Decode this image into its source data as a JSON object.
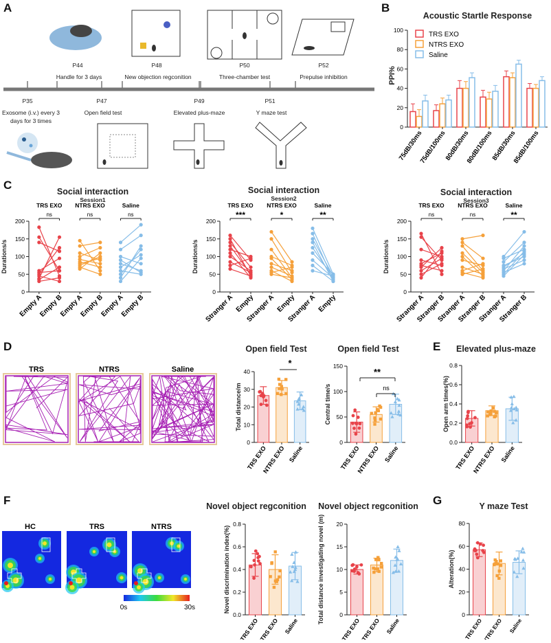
{
  "panels": {
    "A": "A",
    "B": "B",
    "C": "C",
    "D": "D",
    "E": "E",
    "F": "F",
    "G": "G"
  },
  "colors": {
    "trs": "#e8434a",
    "ntrs": "#f5a03a",
    "saline": "#86bde8",
    "trace": "#a61fb3"
  },
  "timeline": {
    "top": [
      {
        "day": "P44",
        "desc": "Handle for 3 days"
      },
      {
        "day": "P48",
        "desc": "New objection regconition"
      },
      {
        "day": "P50",
        "desc": "Three-chamber test"
      },
      {
        "day": "P52",
        "desc": "Prepulse inhibition"
      }
    ],
    "bottom": [
      {
        "day": "P35",
        "desc": "Exosome  (i.v.) every 3 days for 3 times"
      },
      {
        "day": "P47",
        "desc": "Open field test"
      },
      {
        "day": "P49",
        "desc": "Elevated plus-maze"
      },
      {
        "day": "P51",
        "desc": "Y  maze test"
      }
    ],
    "exosome_desc_line1": "Exosome  (i.v.) every 3",
    "exosome_desc_line2": "days for 3 times"
  },
  "startle": {
    "title": "Acoustic Startle Response",
    "ylabel": "PPI%",
    "legend": [
      "TRS EXO",
      "NTRS EXO",
      "Saline"
    ]
  },
  "social": {
    "title": "Social interaction",
    "sessions": [
      {
        "session": "Session1",
        "groups": [
          {
            "name": "TRS EXO",
            "sig": "ns"
          },
          {
            "name": "NTRS EXO",
            "sig": "ns"
          },
          {
            "name": "Saline",
            "sig": "ns"
          }
        ],
        "xlabels": [
          "Empty A",
          "Empty B",
          "Empty A",
          "Empty B",
          "Empty A",
          "Empty B"
        ]
      },
      {
        "session": "Session2",
        "groups": [
          {
            "name": "TRS EXO",
            "sig": "***"
          },
          {
            "name": "NTRS EXO",
            "sig": "*"
          },
          {
            "name": "Saline",
            "sig": "**"
          }
        ],
        "xlabels": [
          "Stranger A",
          "Empty",
          "Stranger A",
          "Empty",
          "Stranger A",
          "Empty"
        ]
      },
      {
        "session": "Session3",
        "groups": [
          {
            "name": "TRS EXO",
            "sig": "ns"
          },
          {
            "name": "NTRS EXO",
            "sig": "ns"
          },
          {
            "name": "Saline",
            "sig": "**"
          }
        ],
        "xlabels": [
          "Stranger A",
          "Stranger B",
          "Stranger A",
          "Stranger B",
          "Stranger A",
          "Stranger B"
        ]
      }
    ],
    "ylabel": "Durations/s"
  },
  "openfield": {
    "trace_labels": [
      "TRS",
      "NTRS",
      "Saline"
    ],
    "title": "Open field Test",
    "sig_total": "*",
    "sig_central_a": "**",
    "sig_central_b": "ns"
  },
  "epm": {
    "title": "Elevated plus-maze"
  },
  "nor": {
    "title": "Novel object regconition",
    "heat_labels": [
      "HC",
      "TRS",
      "NTRS"
    ],
    "scale_min": "0s",
    "scale_max": "30s"
  },
  "ymaze": {
    "title": "Y maze Test"
  },
  "chart_data": [
    {
      "type": "bar",
      "title": "Acoustic Startle Response",
      "ylabel": "PPI%",
      "ylim": [
        0,
        100
      ],
      "yticks": [
        0,
        20,
        40,
        60,
        80,
        100
      ],
      "categories": [
        "75dB/30ms",
        "75dB/100ms",
        "80dB/30ms",
        "80dB/100ms",
        "85dB/30ms",
        "85dB/100ms"
      ],
      "series": [
        {
          "name": "TRS EXO",
          "values": [
            16,
            17,
            40,
            31,
            52,
            40
          ]
        },
        {
          "name": "NTRS EXO",
          "values": [
            11,
            24,
            40,
            29,
            51,
            40
          ]
        },
        {
          "name": "Saline",
          "values": [
            27,
            28,
            51,
            37,
            65,
            48
          ]
        }
      ],
      "errors": [
        [
          8,
          6,
          8,
          7,
          6,
          5
        ],
        [
          7,
          6,
          7,
          7,
          5,
          4
        ],
        [
          6,
          5,
          5,
          6,
          4,
          4
        ]
      ]
    },
    {
      "type": "line",
      "title": "Social interaction Session1",
      "ylabel": "Durations/s",
      "ylim": [
        0,
        200
      ],
      "yticks": [
        0,
        50,
        100,
        150,
        200
      ],
      "series": [
        {
          "name": "TRS EXO",
          "values": [
            [
              183,
              45
            ],
            [
              155,
              60
            ],
            [
              140,
              115
            ],
            [
              60,
              95
            ],
            [
              55,
              60
            ],
            [
              50,
              125
            ],
            [
              45,
              30
            ],
            [
              38,
              155
            ],
            [
              35,
              70
            ],
            [
              30,
              40
            ]
          ]
        },
        {
          "name": "NTRS EXO",
          "values": [
            [
              145,
              60
            ],
            [
              130,
              140
            ],
            [
              110,
              90
            ],
            [
              100,
              125
            ],
            [
              92,
              80
            ],
            [
              85,
              70
            ],
            [
              80,
              95
            ],
            [
              75,
              100
            ],
            [
              70,
              50
            ],
            [
              65,
              110
            ]
          ]
        },
        {
          "name": "Saline",
          "values": [
            [
              140,
              190
            ],
            [
              120,
              160
            ],
            [
              100,
              80
            ],
            [
              90,
              55
            ],
            [
              80,
              60
            ],
            [
              70,
              105
            ],
            [
              60,
              50
            ],
            [
              50,
              120
            ],
            [
              40,
              130
            ],
            [
              30,
              95
            ]
          ]
        }
      ]
    },
    {
      "type": "line",
      "title": "Social interaction Session2",
      "ylabel": "Durations/s",
      "ylim": [
        0,
        200
      ],
      "yticks": [
        0,
        50,
        100,
        150,
        200
      ],
      "series": [
        {
          "name": "TRS EXO",
          "values": [
            [
              160,
              90
            ],
            [
              150,
              45
            ],
            [
              140,
              70
            ],
            [
              130,
              50
            ],
            [
              120,
              100
            ],
            [
              110,
              40
            ],
            [
              100,
              60
            ],
            [
              85,
              55
            ],
            [
              75,
              95
            ],
            [
              65,
              45
            ]
          ]
        },
        {
          "name": "NTRS EXO",
          "values": [
            [
              170,
              85
            ],
            [
              150,
              55
            ],
            [
              120,
              40
            ],
            [
              100,
              75
            ],
            [
              95,
              35
            ],
            [
              80,
              60
            ],
            [
              70,
              45
            ],
            [
              60,
              30
            ],
            [
              55,
              70
            ],
            [
              50,
              40
            ]
          ]
        },
        {
          "name": "Saline",
          "values": [
            [
              180,
              50
            ],
            [
              165,
              35
            ],
            [
              150,
              45
            ],
            [
              140,
              30
            ],
            [
              125,
              40
            ],
            [
              110,
              50
            ],
            [
              90,
              40
            ],
            [
              75,
              30
            ],
            [
              60,
              45
            ]
          ]
        }
      ]
    },
    {
      "type": "line",
      "title": "Social interaction Session3",
      "ylabel": "Durations/s",
      "ylim": [
        0,
        200
      ],
      "yticks": [
        0,
        50,
        100,
        150,
        200
      ],
      "series": [
        {
          "name": "TRS EXO",
          "values": [
            [
              165,
              50
            ],
            [
              155,
              90
            ],
            [
              120,
              100
            ],
            [
              90,
              75
            ],
            [
              80,
              110
            ],
            [
              75,
              60
            ],
            [
              70,
              125
            ],
            [
              60,
              95
            ],
            [
              50,
              80
            ],
            [
              40,
              115
            ]
          ]
        },
        {
          "name": "NTRS EXO",
          "values": [
            [
              150,
              160
            ],
            [
              140,
              95
            ],
            [
              130,
              60
            ],
            [
              110,
              55
            ],
            [
              100,
              45
            ],
            [
              90,
              75
            ],
            [
              70,
              50
            ],
            [
              60,
              80
            ],
            [
              55,
              40
            ],
            [
              50,
              65
            ]
          ]
        },
        {
          "name": "Saline",
          "values": [
            [
              100,
              170
            ],
            [
              95,
              120
            ],
            [
              85,
              140
            ],
            [
              75,
              100
            ],
            [
              70,
              110
            ],
            [
              65,
              90
            ],
            [
              60,
              130
            ],
            [
              55,
              80
            ],
            [
              50,
              115
            ],
            [
              45,
              105
            ]
          ]
        }
      ]
    },
    {
      "type": "bar",
      "title": "Open field Test",
      "ylabel": "Total distance/m",
      "ylim": [
        0,
        40
      ],
      "yticks": [
        0,
        10,
        20,
        30,
        40
      ],
      "categories": [
        "TRS EXO",
        "NTRS EXO",
        "Saline"
      ],
      "values": [
        26.5,
        31,
        23.5
      ],
      "errors": [
        5,
        4,
        5
      ]
    },
    {
      "type": "bar",
      "title": "Open field Test",
      "ylabel": "Central time/s",
      "ylim": [
        0,
        150
      ],
      "yticks": [
        0,
        50,
        100,
        150
      ],
      "categories": [
        "TRS EXO",
        "NTRS EXO",
        "Saline"
      ],
      "values": [
        40,
        55,
        75
      ],
      "errors": [
        20,
        15,
        20
      ]
    },
    {
      "type": "bar",
      "title": "Elevated plus-maze",
      "ylabel": "Open arm times(%)",
      "ylim": [
        0,
        0.8
      ],
      "yticks": [
        0,
        0.2,
        0.4,
        0.6,
        0.8
      ],
      "categories": [
        "TRS EXO",
        "NTRS EXO",
        "Saline"
      ],
      "values": [
        0.25,
        0.33,
        0.35
      ],
      "errors": [
        0.08,
        0.05,
        0.12
      ]
    },
    {
      "type": "bar",
      "title": "Novel object regconition",
      "ylabel": "Novel discrimination index(%)",
      "ylim": [
        0,
        0.8
      ],
      "yticks": [
        0,
        0.2,
        0.4,
        0.6,
        0.8
      ],
      "categories": [
        "TRS EXO",
        "NTRS EXO",
        "Saline"
      ],
      "values": [
        0.44,
        0.4,
        0.43
      ],
      "errors": [
        0.1,
        0.13,
        0.12
      ]
    },
    {
      "type": "bar",
      "title": "Novel object regconition",
      "ylabel": "Total distance investigating novel (m)",
      "ylim": [
        0,
        20
      ],
      "yticks": [
        0,
        5,
        10,
        15,
        20
      ],
      "categories": [
        "TRS EXO",
        "NTRS EXO",
        "Saline"
      ],
      "values": [
        10,
        11,
        12
      ],
      "errors": [
        1,
        1.5,
        2.5
      ]
    },
    {
      "type": "bar",
      "title": "Y maze Test",
      "ylabel": "Alteration(%)",
      "ylim": [
        0,
        80
      ],
      "yticks": [
        0,
        20,
        40,
        60,
        80
      ],
      "categories": [
        "TRS EXO",
        "NTRS EXO",
        "Saline"
      ],
      "values": [
        57,
        45,
        46
      ],
      "errors": [
        6,
        10,
        10
      ]
    }
  ]
}
